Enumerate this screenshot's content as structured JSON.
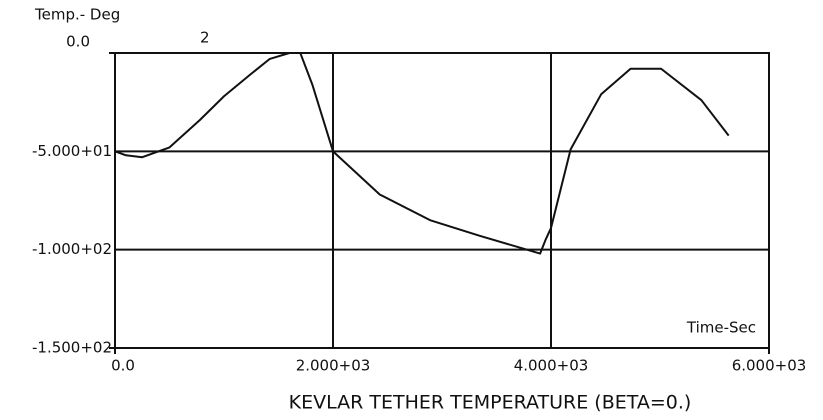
{
  "chart_data": {
    "type": "line",
    "title": "KEVLAR TETHER TEMPERATURE (BETA=0.)",
    "y_label": "Temp.- Deg",
    "x_label": "Time-Sec",
    "annotation": "2",
    "x": [
      0,
      100,
      250,
      500,
      780,
      1000,
      1240,
      1420,
      1600,
      1700,
      1810,
      2000,
      2430,
      2890,
      3350,
      3900,
      3950,
      4000,
      4180,
      4460,
      4730,
      5010,
      5380,
      5630
    ],
    "series": [
      {
        "color": "#111111",
        "values": [
          -50,
          -52,
          -53,
          -48,
          -34,
          -22,
          -11,
          -3,
          0,
          0,
          -16,
          -50,
          -72,
          -85,
          -93,
          -102,
          -95,
          -89,
          -49,
          -21,
          -8,
          -8,
          -24,
          -42
        ]
      }
    ],
    "xlim": [
      0,
      6000
    ],
    "xticks": [
      {
        "value": 0,
        "label": "0.0"
      },
      {
        "value": 2000,
        "label": "2.000+03"
      },
      {
        "value": 4000,
        "label": "4.000+03"
      },
      {
        "value": 6000,
        "label": "6.000+03"
      }
    ],
    "ylim": [
      -150,
      0
    ],
    "yticks": [
      {
        "value": 0,
        "label": "0.0"
      },
      {
        "value": -50,
        "label": "-5.000+01"
      },
      {
        "value": -100,
        "label": "-1.000+02"
      },
      {
        "value": -150,
        "label": "-1.500+02"
      }
    ],
    "grid": true
  }
}
